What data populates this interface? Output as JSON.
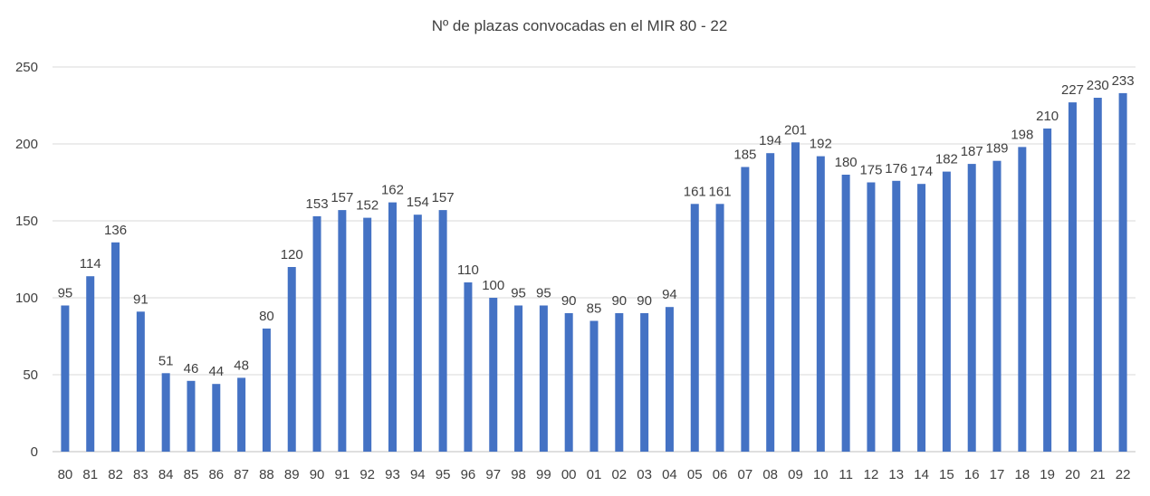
{
  "chart_data": {
    "type": "bar",
    "title": "Nº de plazas convocadas en el MIR 80 - 22",
    "xlabel": "",
    "ylabel": "",
    "ylim": [
      0,
      250
    ],
    "yticks": [
      0,
      50,
      100,
      150,
      200,
      250
    ],
    "grid": true,
    "legend": "none",
    "bar_color": "#4472c4",
    "categories": [
      "80",
      "81",
      "82",
      "83",
      "84",
      "85",
      "86",
      "87",
      "88",
      "89",
      "90",
      "91",
      "92",
      "93",
      "94",
      "95",
      "96",
      "97",
      "98",
      "99",
      "00",
      "01",
      "02",
      "03",
      "04",
      "05",
      "06",
      "07",
      "08",
      "09",
      "10",
      "11",
      "12",
      "13",
      "14",
      "15",
      "16",
      "17",
      "18",
      "19",
      "20",
      "21",
      "22"
    ],
    "values": [
      95,
      114,
      136,
      91,
      51,
      46,
      44,
      48,
      80,
      120,
      153,
      157,
      152,
      162,
      154,
      157,
      110,
      100,
      95,
      95,
      90,
      85,
      90,
      90,
      94,
      161,
      161,
      185,
      194,
      201,
      192,
      180,
      175,
      176,
      174,
      182,
      187,
      189,
      198,
      210,
      227,
      230,
      233
    ]
  }
}
